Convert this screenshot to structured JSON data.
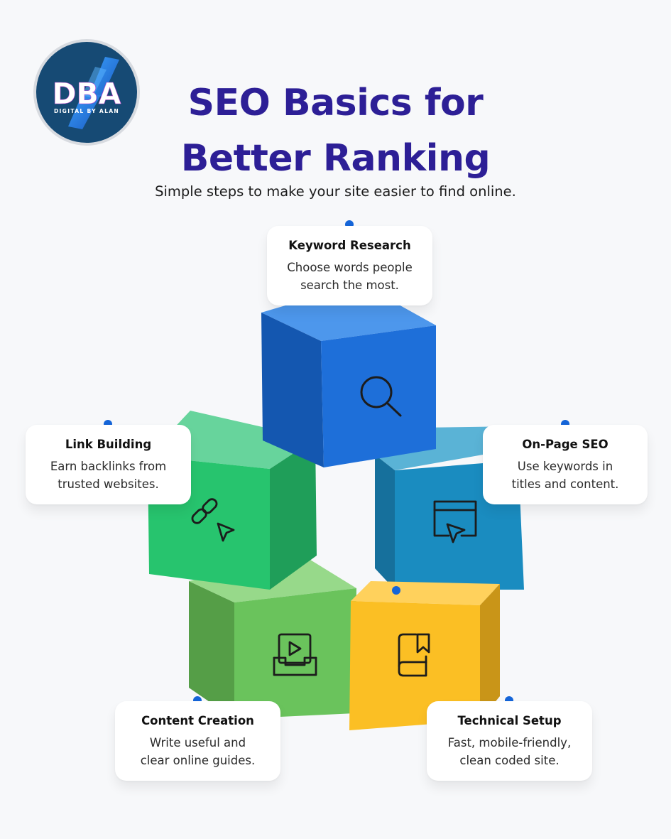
{
  "logo": {
    "text": "DBA",
    "tagline": "DIGITAL BY ALAN",
    "colors": {
      "background": "#164a74",
      "ring": "#d8dbe0",
      "accent": "#2f8ef0"
    }
  },
  "header": {
    "title_line1": "SEO Basics for",
    "title_line2": "Better Ranking",
    "subtitle": "Simple steps to make your site easier to find online."
  },
  "steps": [
    {
      "title": "Keyword Research",
      "description": "Choose words people\nsearch the most.",
      "icon": "search-icon",
      "color": "#1e6fd9"
    },
    {
      "title": "Link Building",
      "description": "Earn backlinks from\ntrusted websites.",
      "icon": "link-cursor-icon",
      "color": "#27c46e"
    },
    {
      "title": "On-Page SEO",
      "description": "Use keywords in\ntitles and content.",
      "icon": "browser-cursor-icon",
      "color": "#1a8cc0"
    },
    {
      "title": "Content Creation",
      "description": "Write useful and\nclear online guides.",
      "icon": "video-tray-icon",
      "color": "#6cc45c"
    },
    {
      "title": "Technical Setup",
      "description": "Fast, mobile-friendly,\nclean coded site.",
      "icon": "bookmark-book-icon",
      "color": "#fbbf24"
    }
  ],
  "colors": {
    "title": "#2d1f96",
    "dot": "#1565d8",
    "background": "#f7f8fa"
  }
}
